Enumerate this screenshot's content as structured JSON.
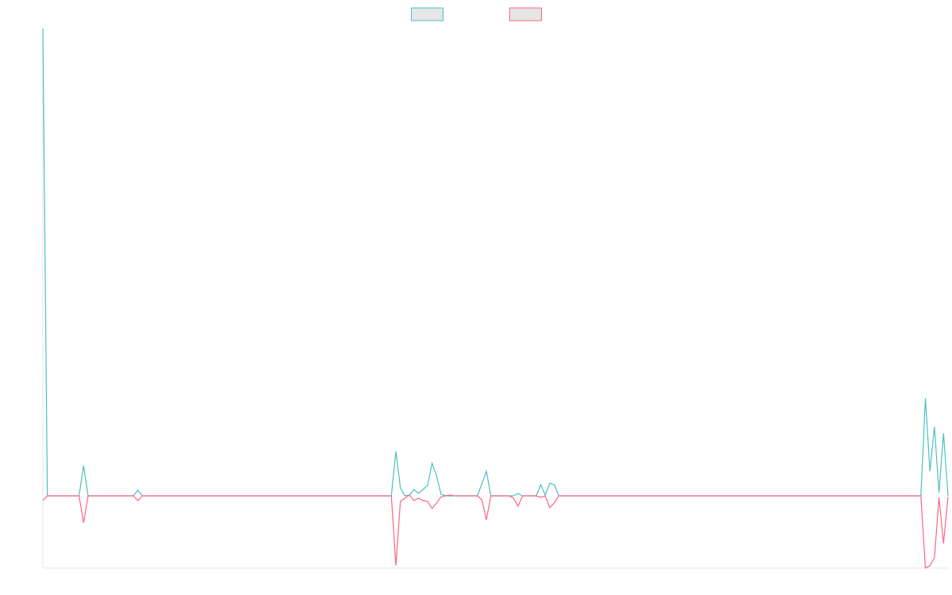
{
  "chart_data": {
    "type": "line",
    "ylim": [
      -91,
      589
    ],
    "series": [
      {
        "color": "#4bc0c0",
        "values": [
          589,
          0,
          0,
          0,
          0,
          0,
          0,
          0,
          0,
          38,
          0,
          0,
          0,
          0,
          0,
          0,
          0,
          0,
          0,
          0,
          0,
          7,
          0,
          0,
          0,
          0,
          0,
          0,
          0,
          0,
          0,
          0,
          0,
          0,
          0,
          0,
          0,
          0,
          0,
          0,
          0,
          0,
          0,
          0,
          0,
          0,
          0,
          0,
          0,
          0,
          0,
          0,
          0,
          0,
          0,
          0,
          0,
          0,
          0,
          0,
          0,
          0,
          0,
          0,
          0,
          0,
          0,
          0,
          0,
          0,
          0,
          0,
          0,
          0,
          0,
          0,
          0,
          0,
          56,
          10,
          0,
          1,
          8,
          3,
          8,
          13,
          41,
          25,
          2,
          0,
          0,
          0,
          0,
          0,
          0,
          0,
          0,
          15,
          31,
          0,
          0,
          0,
          0,
          0,
          0,
          3,
          0,
          0,
          0,
          0,
          14,
          1,
          16,
          14,
          0,
          0,
          0,
          0,
          0,
          0,
          0,
          0,
          0,
          0,
          0,
          0,
          0,
          0,
          0,
          0,
          0,
          0,
          0,
          0,
          0,
          0,
          0,
          0,
          0,
          0,
          0,
          0,
          0,
          0,
          0,
          0,
          0,
          0,
          0,
          0,
          0,
          0,
          0,
          0,
          0,
          0,
          0,
          0,
          0,
          0,
          0,
          0,
          0,
          0,
          0,
          0,
          0,
          0,
          0,
          0,
          0,
          0,
          0,
          0,
          0,
          0,
          0,
          0,
          0,
          0,
          0,
          0,
          0,
          0,
          0,
          0,
          0,
          0,
          0,
          0,
          0,
          0,
          0,
          0,
          0,
          123,
          31,
          87,
          4,
          79,
          0
        ]
      },
      {
        "color": "#ff6384",
        "values": [
          -6,
          0,
          0,
          0,
          0,
          0,
          0,
          0,
          0,
          -34,
          0,
          0,
          0,
          0,
          0,
          0,
          0,
          0,
          0,
          0,
          0,
          -6,
          0,
          0,
          0,
          0,
          0,
          0,
          0,
          0,
          0,
          0,
          0,
          0,
          0,
          0,
          0,
          0,
          0,
          0,
          0,
          0,
          0,
          0,
          0,
          0,
          0,
          0,
          0,
          0,
          0,
          0,
          0,
          0,
          0,
          0,
          0,
          0,
          0,
          0,
          0,
          0,
          0,
          0,
          0,
          0,
          0,
          0,
          0,
          0,
          0,
          0,
          0,
          0,
          0,
          0,
          0,
          0,
          -88,
          -7,
          -3,
          1,
          -6,
          -3,
          -6,
          -7,
          -16,
          -9,
          -1,
          0,
          1,
          0,
          0,
          0,
          0,
          0,
          0,
          -5,
          -30,
          0,
          0,
          0,
          0,
          0,
          -3,
          -13,
          0,
          0,
          0,
          0,
          -2,
          0,
          -15,
          -9,
          0,
          0,
          0,
          0,
          0,
          0,
          0,
          0,
          0,
          0,
          0,
          0,
          0,
          0,
          0,
          0,
          0,
          0,
          0,
          0,
          0,
          0,
          0,
          0,
          0,
          0,
          0,
          0,
          0,
          0,
          0,
          0,
          0,
          0,
          0,
          0,
          0,
          0,
          0,
          0,
          0,
          0,
          0,
          0,
          0,
          0,
          0,
          0,
          0,
          0,
          0,
          0,
          0,
          0,
          0,
          0,
          0,
          0,
          0,
          0,
          0,
          0,
          0,
          0,
          0,
          0,
          0,
          0,
          0,
          0,
          0,
          0,
          0,
          0,
          0,
          0,
          0,
          0,
          0,
          0,
          0,
          -91,
          -88,
          -78,
          -2,
          -60,
          -1
        ]
      }
    ],
    "legend": "top"
  }
}
